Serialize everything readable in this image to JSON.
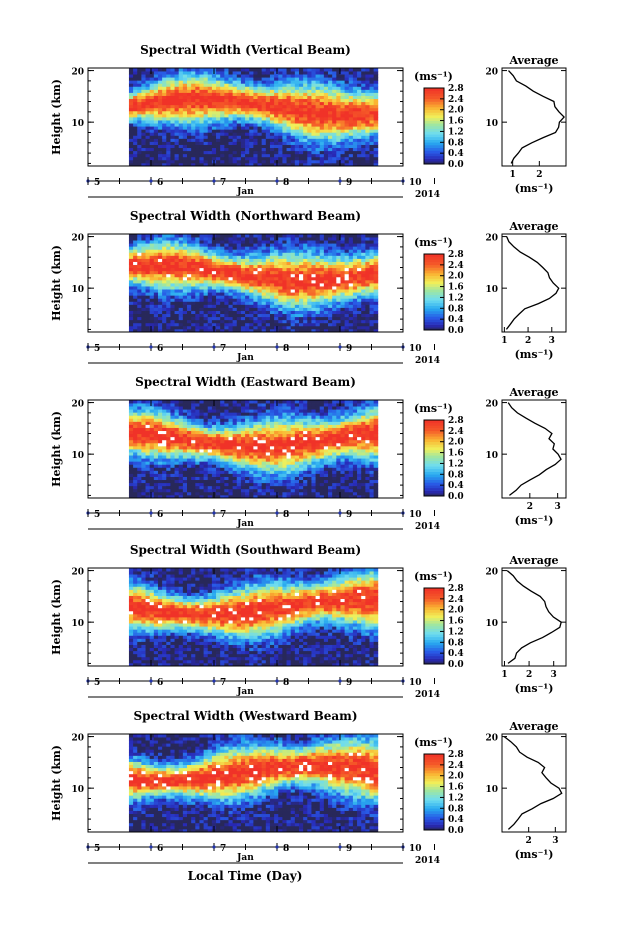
{
  "figure": {
    "xlabel": "Local Time (Day)",
    "date_unit": "Jan",
    "year": "2014",
    "ylabel": "Height (km)",
    "avg_title": "Average",
    "cbar_unit": "(ms⁻¹)",
    "cbar_ticks": [
      "0.0",
      "0.4",
      "0.8",
      "1.2",
      "1.6",
      "2.0",
      "2.4",
      "2.8"
    ],
    "x_ticks": [
      "5",
      "6",
      "7",
      "8",
      "9",
      "10"
    ],
    "y_ticks": [
      "10",
      "20"
    ]
  },
  "chart_data": [
    {
      "type": "heatmap",
      "title": "Spectral Width (Vertical Beam)",
      "xlabel": "Jan",
      "ylabel": "Height (km)",
      "xlim": [
        5.0,
        10.0
      ],
      "ylim": [
        1.5,
        20.5
      ],
      "data_xrange": [
        5.65,
        9.6
      ],
      "color_range": [
        0.0,
        2.8
      ],
      "colorbar_label": "(ms⁻¹)",
      "average_profile": {
        "title": "Average",
        "xlabel": "(ms⁻¹)",
        "xticks": [
          "1",
          "2"
        ],
        "xlim": [
          0.6,
          3.0
        ],
        "height_km": [
          2,
          3,
          4,
          5,
          6,
          7,
          8,
          9,
          10,
          11,
          12,
          13,
          14,
          15,
          16,
          17,
          18,
          19,
          20
        ],
        "values": [
          1.0,
          1.1,
          1.2,
          1.4,
          1.7,
          2.1,
          2.6,
          2.7,
          2.8,
          2.9,
          2.7,
          2.6,
          2.5,
          2.2,
          1.8,
          1.5,
          1.2,
          1.0,
          0.9
        ]
      }
    },
    {
      "type": "heatmap",
      "title": "Spectral Width (Northward Beam)",
      "xlabel": "Jan",
      "ylabel": "Height (km)",
      "xlim": [
        5.0,
        10.0
      ],
      "ylim": [
        1.5,
        20.5
      ],
      "data_xrange": [
        5.65,
        9.6
      ],
      "color_range": [
        0.0,
        2.8
      ],
      "colorbar_label": "(ms⁻¹)",
      "average_profile": {
        "title": "Average",
        "xlabel": "(ms⁻¹)",
        "xticks": [
          "1",
          "2",
          "3"
        ],
        "xlim": [
          0.9,
          3.6
        ],
        "height_km": [
          2,
          3,
          4,
          5,
          6,
          7,
          8,
          9,
          10,
          11,
          12,
          13,
          14,
          15,
          16,
          17,
          18,
          19,
          20
        ],
        "values": [
          1.1,
          1.3,
          1.4,
          1.6,
          1.9,
          2.4,
          2.9,
          3.2,
          3.3,
          3.1,
          2.9,
          2.8,
          2.6,
          2.4,
          2.0,
          1.7,
          1.4,
          1.2,
          1.1
        ]
      }
    },
    {
      "type": "heatmap",
      "title": "Spectral Width (Eastward Beam)",
      "xlabel": "Jan",
      "ylabel": "Height (km)",
      "xlim": [
        5.0,
        10.0
      ],
      "ylim": [
        1.5,
        20.5
      ],
      "data_xrange": [
        5.65,
        9.6
      ],
      "color_range": [
        0.0,
        2.8
      ],
      "colorbar_label": "(ms⁻¹)",
      "average_profile": {
        "title": "Average",
        "xlabel": "(ms⁻¹)",
        "xticks": [
          "2",
          "3"
        ],
        "xlim": [
          1.0,
          3.3
        ],
        "height_km": [
          2,
          3,
          4,
          5,
          6,
          7,
          8,
          9,
          10,
          11,
          12,
          13,
          14,
          15,
          16,
          17,
          18,
          19,
          20
        ],
        "values": [
          1.3,
          1.5,
          1.7,
          2.0,
          2.3,
          2.6,
          2.9,
          3.1,
          3.0,
          2.8,
          2.9,
          2.7,
          2.8,
          2.5,
          2.2,
          1.9,
          1.6,
          1.4,
          1.2
        ]
      }
    },
    {
      "type": "heatmap",
      "title": "Spectral Width (Southward Beam)",
      "xlabel": "Jan",
      "ylabel": "Height (km)",
      "xlim": [
        5.0,
        10.0
      ],
      "ylim": [
        1.5,
        20.5
      ],
      "data_xrange": [
        5.65,
        9.6
      ],
      "color_range": [
        0.0,
        2.8
      ],
      "colorbar_label": "(ms⁻¹)",
      "average_profile": {
        "title": "Average",
        "xlabel": "(ms⁻¹)",
        "xticks": [
          "1",
          "2",
          "3"
        ],
        "xlim": [
          0.9,
          3.5
        ],
        "height_km": [
          2,
          3,
          4,
          5,
          6,
          7,
          8,
          9,
          10,
          11,
          12,
          13,
          14,
          15,
          16,
          17,
          18,
          19,
          20
        ],
        "values": [
          1.2,
          1.4,
          1.5,
          1.7,
          2.0,
          2.5,
          2.9,
          3.2,
          3.3,
          3.0,
          2.8,
          2.7,
          2.6,
          2.4,
          2.1,
          1.8,
          1.5,
          1.3,
          1.1
        ]
      }
    },
    {
      "type": "heatmap",
      "title": "Spectral Width (Westward Beam)",
      "xlabel": "Jan",
      "ylabel": "Height (km)",
      "xlim": [
        5.0,
        10.0
      ],
      "ylim": [
        1.5,
        20.5
      ],
      "data_xrange": [
        5.65,
        9.6
      ],
      "color_range": [
        0.0,
        2.8
      ],
      "colorbar_label": "(ms⁻¹)",
      "average_profile": {
        "title": "Average",
        "xlabel": "(ms⁻¹)",
        "xticks": [
          "2",
          "3"
        ],
        "xlim": [
          1.0,
          3.4
        ],
        "height_km": [
          2,
          3,
          4,
          5,
          6,
          7,
          8,
          9,
          10,
          11,
          12,
          13,
          14,
          15,
          16,
          17,
          18,
          19,
          20
        ],
        "values": [
          1.2,
          1.4,
          1.6,
          1.8,
          2.1,
          2.5,
          2.9,
          3.2,
          3.1,
          2.8,
          2.7,
          2.5,
          2.6,
          2.3,
          2.0,
          1.7,
          1.5,
          1.3,
          1.1
        ]
      }
    }
  ]
}
